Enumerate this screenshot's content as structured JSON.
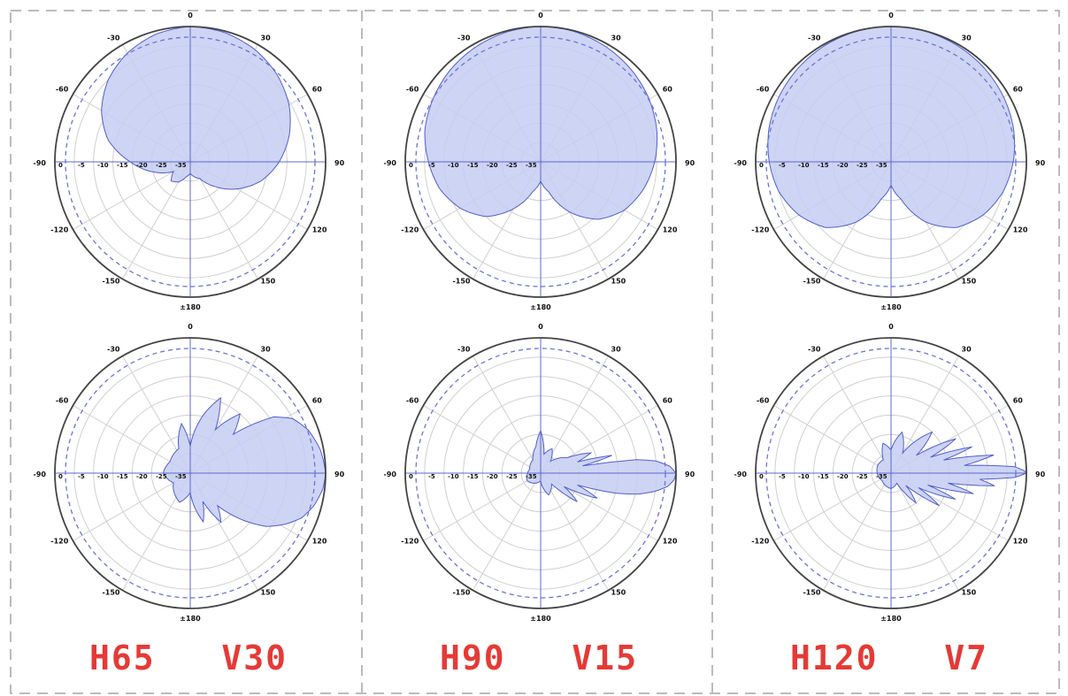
{
  "colors": {
    "pattern_fill": "#c5ccf2",
    "pattern_stroke": "#4f5fcf",
    "axis_line": "#5b68d0",
    "grid": "#d0d0d0",
    "outer_ring": "#444444",
    "dashed_ring": "#6b73d8",
    "caption": "#e53a36",
    "panel_divider": "#bbbbbb"
  },
  "chart_data": [
    {
      "type": "polar",
      "caption_h": "H65",
      "caption_v": "V30",
      "plane": "horizontal",
      "angle_labels": [
        "0",
        "30",
        "60",
        "90",
        "120",
        "150",
        "±180",
        "-150",
        "-120",
        "-90",
        "-60",
        "-30"
      ],
      "radial_labels": [
        "0",
        "-5",
        "-10",
        "-15",
        "-20",
        "-25",
        "-35"
      ],
      "rlim": [
        -35,
        0
      ],
      "pattern_db": [
        [
          0,
          0
        ],
        [
          15,
          -0.4
        ],
        [
          30,
          -1.5
        ],
        [
          45,
          -3.2
        ],
        [
          60,
          -5.5
        ],
        [
          75,
          -8.5
        ],
        [
          90,
          -12
        ],
        [
          105,
          -16
        ],
        [
          120,
          -21
        ],
        [
          135,
          -26
        ],
        [
          150,
          -30
        ],
        [
          165,
          -31
        ],
        [
          180,
          -32
        ],
        [
          195,
          -31
        ],
        [
          210,
          -29
        ],
        [
          225,
          -28
        ],
        [
          240,
          -30
        ],
        [
          255,
          -25
        ],
        [
          270,
          -19.5
        ],
        [
          285,
          -13
        ],
        [
          300,
          -8.5
        ],
        [
          315,
          -5
        ],
        [
          330,
          -2.5
        ],
        [
          345,
          -0.8
        ]
      ]
    },
    {
      "type": "polar",
      "caption_h": "H90",
      "caption_v": "V15",
      "plane": "horizontal",
      "angle_labels": [
        "0",
        "30",
        "60",
        "90",
        "120",
        "150",
        "±180",
        "-150",
        "-120",
        "-90",
        "-60",
        "-30"
      ],
      "radial_labels": [
        "0",
        "-5",
        "-10",
        "-15",
        "-20",
        "-25",
        "-35"
      ],
      "rlim": [
        -35,
        0
      ],
      "pattern_db": [
        [
          0,
          0
        ],
        [
          15,
          -0.2
        ],
        [
          30,
          -0.8
        ],
        [
          45,
          -1.6
        ],
        [
          60,
          -2.6
        ],
        [
          75,
          -3.9
        ],
        [
          90,
          -5.5
        ],
        [
          105,
          -7.5
        ],
        [
          120,
          -10
        ],
        [
          135,
          -14
        ],
        [
          150,
          -20
        ],
        [
          165,
          -27
        ],
        [
          180,
          -30
        ],
        [
          195,
          -27
        ],
        [
          210,
          -21
        ],
        [
          225,
          -15
        ],
        [
          240,
          -11
        ],
        [
          255,
          -8
        ],
        [
          270,
          -6
        ],
        [
          285,
          -4
        ],
        [
          300,
          -2.8
        ],
        [
          315,
          -1.7
        ],
        [
          330,
          -0.9
        ],
        [
          345,
          -0.3
        ]
      ]
    },
    {
      "type": "polar",
      "caption_h": "H120",
      "caption_v": "V7",
      "plane": "horizontal",
      "angle_labels": [
        "0",
        "30",
        "60",
        "90",
        "120",
        "150",
        "±180",
        "-150",
        "-120",
        "-90",
        "-60",
        "-30"
      ],
      "radial_labels": [
        "0",
        "-5",
        "-10",
        "-15",
        "-20",
        "-25",
        "-35"
      ],
      "rlim": [
        -35,
        0
      ],
      "pattern_db": [
        [
          0,
          0
        ],
        [
          15,
          -0.1
        ],
        [
          30,
          -0.4
        ],
        [
          45,
          -0.8
        ],
        [
          60,
          -1.4
        ],
        [
          75,
          -2.2
        ],
        [
          90,
          -3.4
        ],
        [
          105,
          -5
        ],
        [
          120,
          -7.5
        ],
        [
          135,
          -11
        ],
        [
          150,
          -17
        ],
        [
          165,
          -25
        ],
        [
          180,
          -29
        ],
        [
          195,
          -25
        ],
        [
          210,
          -17
        ],
        [
          225,
          -11
        ],
        [
          240,
          -7.5
        ],
        [
          255,
          -5
        ],
        [
          270,
          -3.5
        ],
        [
          285,
          -2.3
        ],
        [
          300,
          -1.5
        ],
        [
          315,
          -0.9
        ],
        [
          330,
          -0.4
        ],
        [
          345,
          -0.1
        ]
      ]
    },
    {
      "type": "polar",
      "caption_h": "H65",
      "caption_v": "V30",
      "plane": "vertical",
      "angle_labels": [
        "0",
        "30",
        "60",
        "90",
        "120",
        "150",
        "±180",
        "-150",
        "-120",
        "-90",
        "-60",
        "-30"
      ],
      "radial_labels": [
        "0",
        "-5",
        "-10",
        "-15",
        "-20",
        "-25",
        "-35"
      ],
      "rlim": [
        -35,
        0
      ],
      "pattern_db": [
        [
          90,
          0
        ],
        [
          97,
          -0.5
        ],
        [
          105,
          -2
        ],
        [
          112,
          -4
        ],
        [
          118,
          -7
        ],
        [
          125,
          -11
        ],
        [
          132,
          -17
        ],
        [
          140,
          -24
        ],
        [
          148,
          -20
        ],
        [
          156,
          -27
        ],
        [
          165,
          -22
        ],
        [
          180,
          -30
        ],
        [
          200,
          -27
        ],
        [
          240,
          -30
        ],
        [
          270,
          -28
        ],
        [
          300,
          -29
        ],
        [
          335,
          -28
        ],
        [
          350,
          -22
        ],
        [
          0,
          -28
        ],
        [
          12,
          -20
        ],
        [
          22,
          -14
        ],
        [
          30,
          -22
        ],
        [
          40,
          -15
        ],
        [
          48,
          -20
        ],
        [
          56,
          -9
        ],
        [
          62,
          -5
        ],
        [
          70,
          -2.5
        ],
        [
          80,
          -0.8
        ]
      ]
    },
    {
      "type": "polar",
      "caption_h": "H90",
      "caption_v": "V15",
      "plane": "vertical",
      "angle_labels": [
        "0",
        "30",
        "60",
        "90",
        "120",
        "150",
        "±180",
        "-150",
        "-120",
        "-90",
        "-60",
        "-30"
      ],
      "radial_labels": [
        "0",
        "-5",
        "-10",
        "-15",
        "-20",
        "-25",
        "-35"
      ],
      "rlim": [
        -35,
        0
      ],
      "pattern_db": [
        [
          90,
          0
        ],
        [
          93,
          -0.5
        ],
        [
          96,
          -2
        ],
        [
          99,
          -5
        ],
        [
          102,
          -9
        ],
        [
          105,
          -15
        ],
        [
          108,
          -25
        ],
        [
          114,
          -19
        ],
        [
          120,
          -28
        ],
        [
          128,
          -23
        ],
        [
          135,
          -31
        ],
        [
          160,
          -29
        ],
        [
          180,
          -33
        ],
        [
          240,
          -31
        ],
        [
          290,
          -32
        ],
        [
          330,
          -31
        ],
        [
          350,
          -28
        ],
        [
          0,
          -24
        ],
        [
          10,
          -30
        ],
        [
          25,
          -28
        ],
        [
          40,
          -31
        ],
        [
          60,
          -27
        ],
        [
          68,
          -21
        ],
        [
          73,
          -25
        ],
        [
          76,
          -16
        ],
        [
          80,
          -24
        ],
        [
          82,
          -10
        ],
        [
          84,
          -5
        ],
        [
          87,
          -1.5
        ]
      ]
    },
    {
      "type": "polar",
      "caption_h": "H120",
      "caption_v": "V7",
      "plane": "vertical",
      "angle_labels": [
        "0",
        "30",
        "60",
        "90",
        "120",
        "150",
        "±180",
        "-150",
        "-120",
        "-90",
        "-60",
        "-30"
      ],
      "radial_labels": [
        "0",
        "-5",
        "-10",
        "-15",
        "-20",
        "-25",
        "-35"
      ],
      "rlim": [
        -35,
        0
      ],
      "pattern_db": [
        [
          90,
          0
        ],
        [
          92,
          -3
        ],
        [
          94,
          -12
        ],
        [
          97,
          -8
        ],
        [
          100,
          -20
        ],
        [
          104,
          -13
        ],
        [
          108,
          -25
        ],
        [
          112,
          -17
        ],
        [
          118,
          -27
        ],
        [
          124,
          -20
        ],
        [
          130,
          -30
        ],
        [
          140,
          -25
        ],
        [
          150,
          -32
        ],
        [
          180,
          -31
        ],
        [
          230,
          -32
        ],
        [
          300,
          -31
        ],
        [
          330,
          -31
        ],
        [
          345,
          -27
        ],
        [
          0,
          -29
        ],
        [
          15,
          -24
        ],
        [
          30,
          -29
        ],
        [
          45,
          -20
        ],
        [
          55,
          -27
        ],
        [
          62,
          -16
        ],
        [
          68,
          -24
        ],
        [
          72,
          -13
        ],
        [
          76,
          -21
        ],
        [
          80,
          -8
        ],
        [
          84,
          -16
        ],
        [
          87,
          -3
        ],
        [
          89,
          -0.5
        ]
      ]
    }
  ]
}
